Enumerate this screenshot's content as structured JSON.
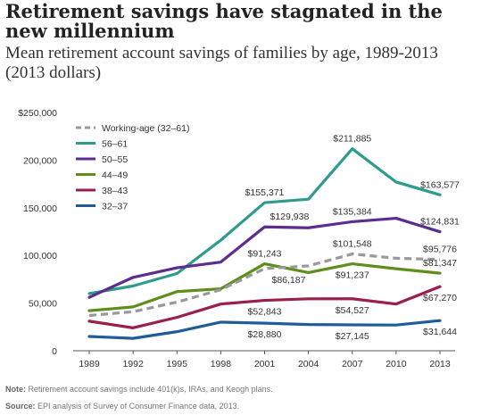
{
  "title": "Retirement savings have stagnated in the new millennium",
  "subtitle": "Mean retirement account savings of families by age, 1989-2013 (2013 dollars)",
  "note_label": "Note:",
  "note_text": "Retirement account savings include 401(k)s, IRAs, and Keogh plans.",
  "source_label": "Source:",
  "source_text": "EPI analysis of  Survey of Consumer Finance data, 2013.",
  "chart_data": {
    "type": "line",
    "x": [
      1989,
      1992,
      1995,
      1998,
      2001,
      2004,
      2007,
      2010,
      2013
    ],
    "ylim": [
      0,
      250000
    ],
    "yticks": [
      0,
      50000,
      100000,
      150000,
      200000,
      250000
    ],
    "ytick_labels": [
      "0",
      "50,000",
      "100,000",
      "150,000",
      "200,000",
      "$250,000"
    ],
    "grid": false,
    "legend_position": "top-left",
    "series": [
      {
        "name": "Working-age (32–61)",
        "color": "#999999",
        "dashed": true,
        "values": [
          37000,
          41000,
          51000,
          64000,
          86187,
          89000,
          101548,
          97000,
          95776
        ]
      },
      {
        "name": "56–61",
        "color": "#2e9c8d",
        "dashed": false,
        "values": [
          60000,
          68000,
          81000,
          116000,
          155371,
          159000,
          211885,
          177000,
          163577
        ]
      },
      {
        "name": "50–55",
        "color": "#5c2d91",
        "dashed": false,
        "values": [
          56000,
          77000,
          87000,
          93000,
          129938,
          129000,
          135384,
          139000,
          124831
        ]
      },
      {
        "name": "44–49",
        "color": "#5e8e1c",
        "dashed": false,
        "values": [
          42000,
          46000,
          62000,
          65000,
          91243,
          82000,
          91237,
          86000,
          81347
        ]
      },
      {
        "name": "38–43",
        "color": "#9b1f4c",
        "dashed": false,
        "values": [
          31000,
          24000,
          35000,
          49000,
          52843,
          54500,
          54527,
          49000,
          67270
        ]
      },
      {
        "name": "32–37",
        "color": "#1f5c99",
        "dashed": false,
        "values": [
          15000,
          13000,
          20000,
          30000,
          28880,
          27500,
          27145,
          27000,
          31644
        ]
      }
    ],
    "annotations": [
      {
        "text": "$211,885",
        "x": 2007,
        "y": 211885,
        "pos": "above"
      },
      {
        "text": "$155,371",
        "x": 2001,
        "y": 155371,
        "pos": "above"
      },
      {
        "text": "$163,577",
        "x": 2013,
        "y": 163577,
        "pos": "above"
      },
      {
        "text": "$129,938",
        "x": 2001,
        "y": 129938,
        "pos": "above-right"
      },
      {
        "text": "$135,384",
        "x": 2007,
        "y": 135384,
        "pos": "above"
      },
      {
        "text": "$124,831",
        "x": 2013,
        "y": 124831,
        "pos": "above"
      },
      {
        "text": "$91,243",
        "x": 2001,
        "y": 91243,
        "pos": "above"
      },
      {
        "text": "$101,548",
        "x": 2007,
        "y": 101548,
        "pos": "above"
      },
      {
        "text": "$95,776",
        "x": 2013,
        "y": 95776,
        "pos": "above"
      },
      {
        "text": "$86,187",
        "x": 2001,
        "y": 86187,
        "pos": "below-right"
      },
      {
        "text": "$91,237",
        "x": 2007,
        "y": 91237,
        "pos": "below"
      },
      {
        "text": "$81,347",
        "x": 2013,
        "y": 81347,
        "pos": "above"
      },
      {
        "text": "$52,843",
        "x": 2001,
        "y": 52843,
        "pos": "below"
      },
      {
        "text": "$54,527",
        "x": 2007,
        "y": 54527,
        "pos": "below"
      },
      {
        "text": "$67,270",
        "x": 2013,
        "y": 67270,
        "pos": "below"
      },
      {
        "text": "$28,880",
        "x": 2001,
        "y": 28880,
        "pos": "below"
      },
      {
        "text": "$27,145",
        "x": 2007,
        "y": 27145,
        "pos": "below"
      },
      {
        "text": "$31,644",
        "x": 2013,
        "y": 31644,
        "pos": "below"
      }
    ]
  }
}
